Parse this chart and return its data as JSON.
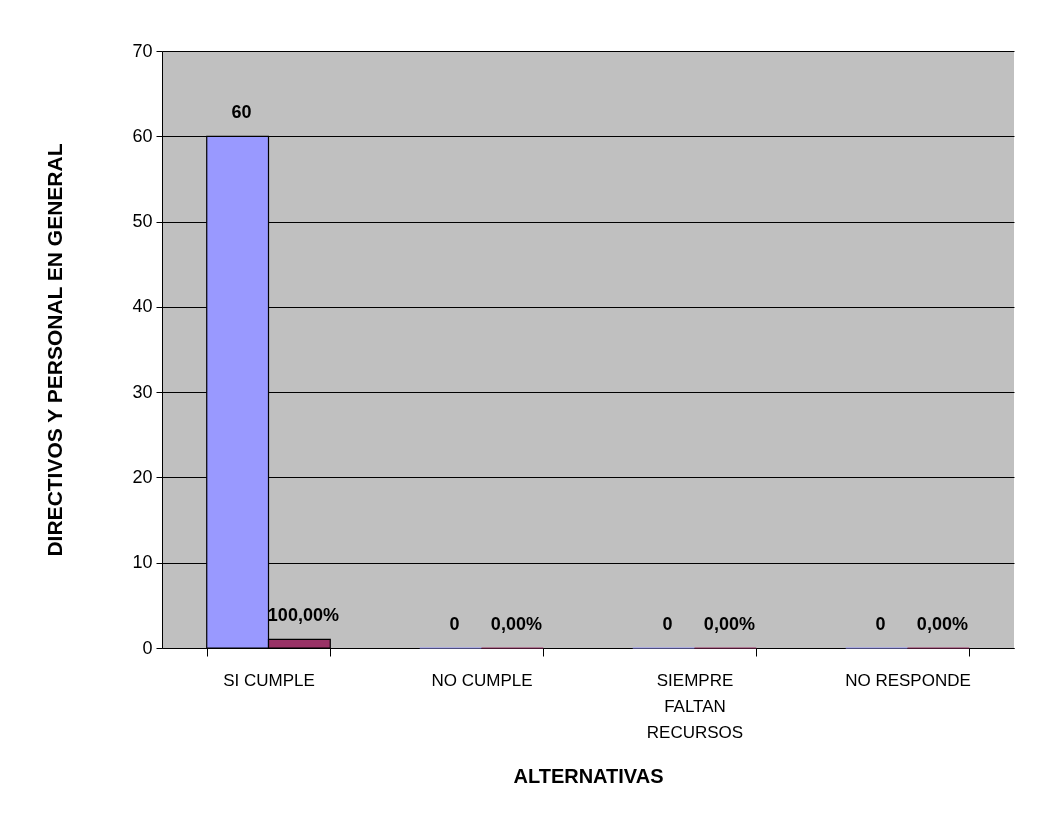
{
  "chart_data": {
    "type": "bar",
    "ylabel": "DIRECTIVOS Y PERSONAL EN GENERAL",
    "xlabel": "ALTERNATIVAS",
    "categories": [
      "SI CUMPLE",
      "NO CUMPLE",
      "SIEMPRE FALTAN RECURSOS",
      "NO RESPONDE"
    ],
    "series": [
      {
        "color": "#9999ff",
        "values": [
          60,
          0,
          0,
          0
        ],
        "value_labels": [
          "60",
          "0",
          "0",
          "0"
        ]
      },
      {
        "color": "#993366",
        "values": [
          1,
          0,
          0,
          0
        ],
        "value_labels": [
          "100,00%",
          "0,00%",
          "0,00%",
          "0,00%"
        ]
      }
    ],
    "ylim": [
      0,
      70
    ],
    "yticks": [
      0,
      10,
      20,
      30,
      40,
      50,
      60,
      70
    ],
    "grid": "y"
  }
}
